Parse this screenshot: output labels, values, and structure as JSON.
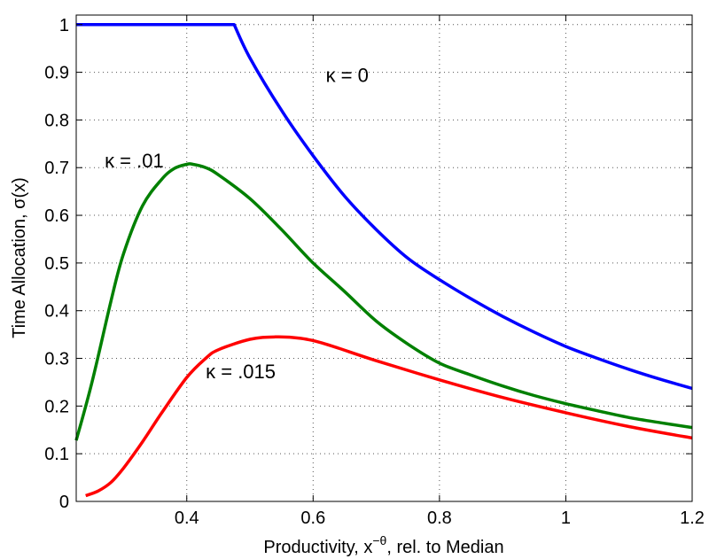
{
  "chart_data": {
    "type": "line",
    "xlabel_parts": [
      "Productivity, x",
      "−θ",
      ", rel. to Median"
    ],
    "ylabel": "Time Allocation, σ(x)",
    "xlim": [
      0.225,
      1.2
    ],
    "ylim": [
      0,
      1.02
    ],
    "x_ticks": [
      0.4,
      0.6,
      0.8,
      1,
      1.2
    ],
    "x_tick_labels": [
      "0.4",
      "0.6",
      "0.8",
      "1",
      "1.2"
    ],
    "y_ticks": [
      0,
      0.1,
      0.2,
      0.3,
      0.4,
      0.5,
      0.6,
      0.7,
      0.8,
      0.9,
      1
    ],
    "y_tick_labels": [
      "0",
      "0.1",
      "0.2",
      "0.3",
      "0.4",
      "0.5",
      "0.6",
      "0.7",
      "0.8",
      "0.9",
      "1"
    ],
    "grid": true,
    "series": [
      {
        "color": "#0000ff",
        "x": [
          0.225,
          0.3,
          0.4,
          0.475,
          0.5,
          0.55,
          0.6,
          0.65,
          0.7,
          0.75,
          0.8,
          0.85,
          0.9,
          0.95,
          1.0,
          1.05,
          1.1,
          1.15,
          1.2
        ],
        "y": [
          1,
          1,
          1,
          1,
          0.93,
          0.82,
          0.725,
          0.64,
          0.57,
          0.51,
          0.465,
          0.425,
          0.388,
          0.355,
          0.325,
          0.3,
          0.277,
          0.256,
          0.237
        ]
      },
      {
        "color": "#008000",
        "x": [
          0.225,
          0.25,
          0.28,
          0.3,
          0.33,
          0.36,
          0.38,
          0.4,
          0.41,
          0.43,
          0.45,
          0.5,
          0.55,
          0.6,
          0.65,
          0.7,
          0.75,
          0.8,
          0.85,
          0.9,
          0.95,
          1.0,
          1.05,
          1.1,
          1.15,
          1.2
        ],
        "y": [
          0.128,
          0.25,
          0.42,
          0.52,
          0.62,
          0.675,
          0.698,
          0.707,
          0.707,
          0.7,
          0.685,
          0.635,
          0.57,
          0.5,
          0.44,
          0.378,
          0.33,
          0.29,
          0.265,
          0.242,
          0.222,
          0.205,
          0.19,
          0.176,
          0.165,
          0.155
        ]
      },
      {
        "color": "#ff0000",
        "x": [
          0.24,
          0.26,
          0.28,
          0.3,
          0.33,
          0.36,
          0.4,
          0.43,
          0.45,
          0.5,
          0.54,
          0.58,
          0.62,
          0.7,
          0.8,
          0.9,
          1.0,
          1.1,
          1.2
        ],
        "y": [
          0.012,
          0.022,
          0.04,
          0.07,
          0.125,
          0.185,
          0.26,
          0.3,
          0.318,
          0.34,
          0.345,
          0.342,
          0.33,
          0.295,
          0.255,
          0.218,
          0.186,
          0.157,
          0.133
        ]
      }
    ],
    "annotations": [
      {
        "text": "κ = 0",
        "x": 0.62,
        "y": 0.88
      },
      {
        "text": "κ = .01",
        "x": 0.27,
        "y": 0.7
      },
      {
        "text": "κ = .015",
        "x": 0.43,
        "y": 0.258
      }
    ]
  }
}
